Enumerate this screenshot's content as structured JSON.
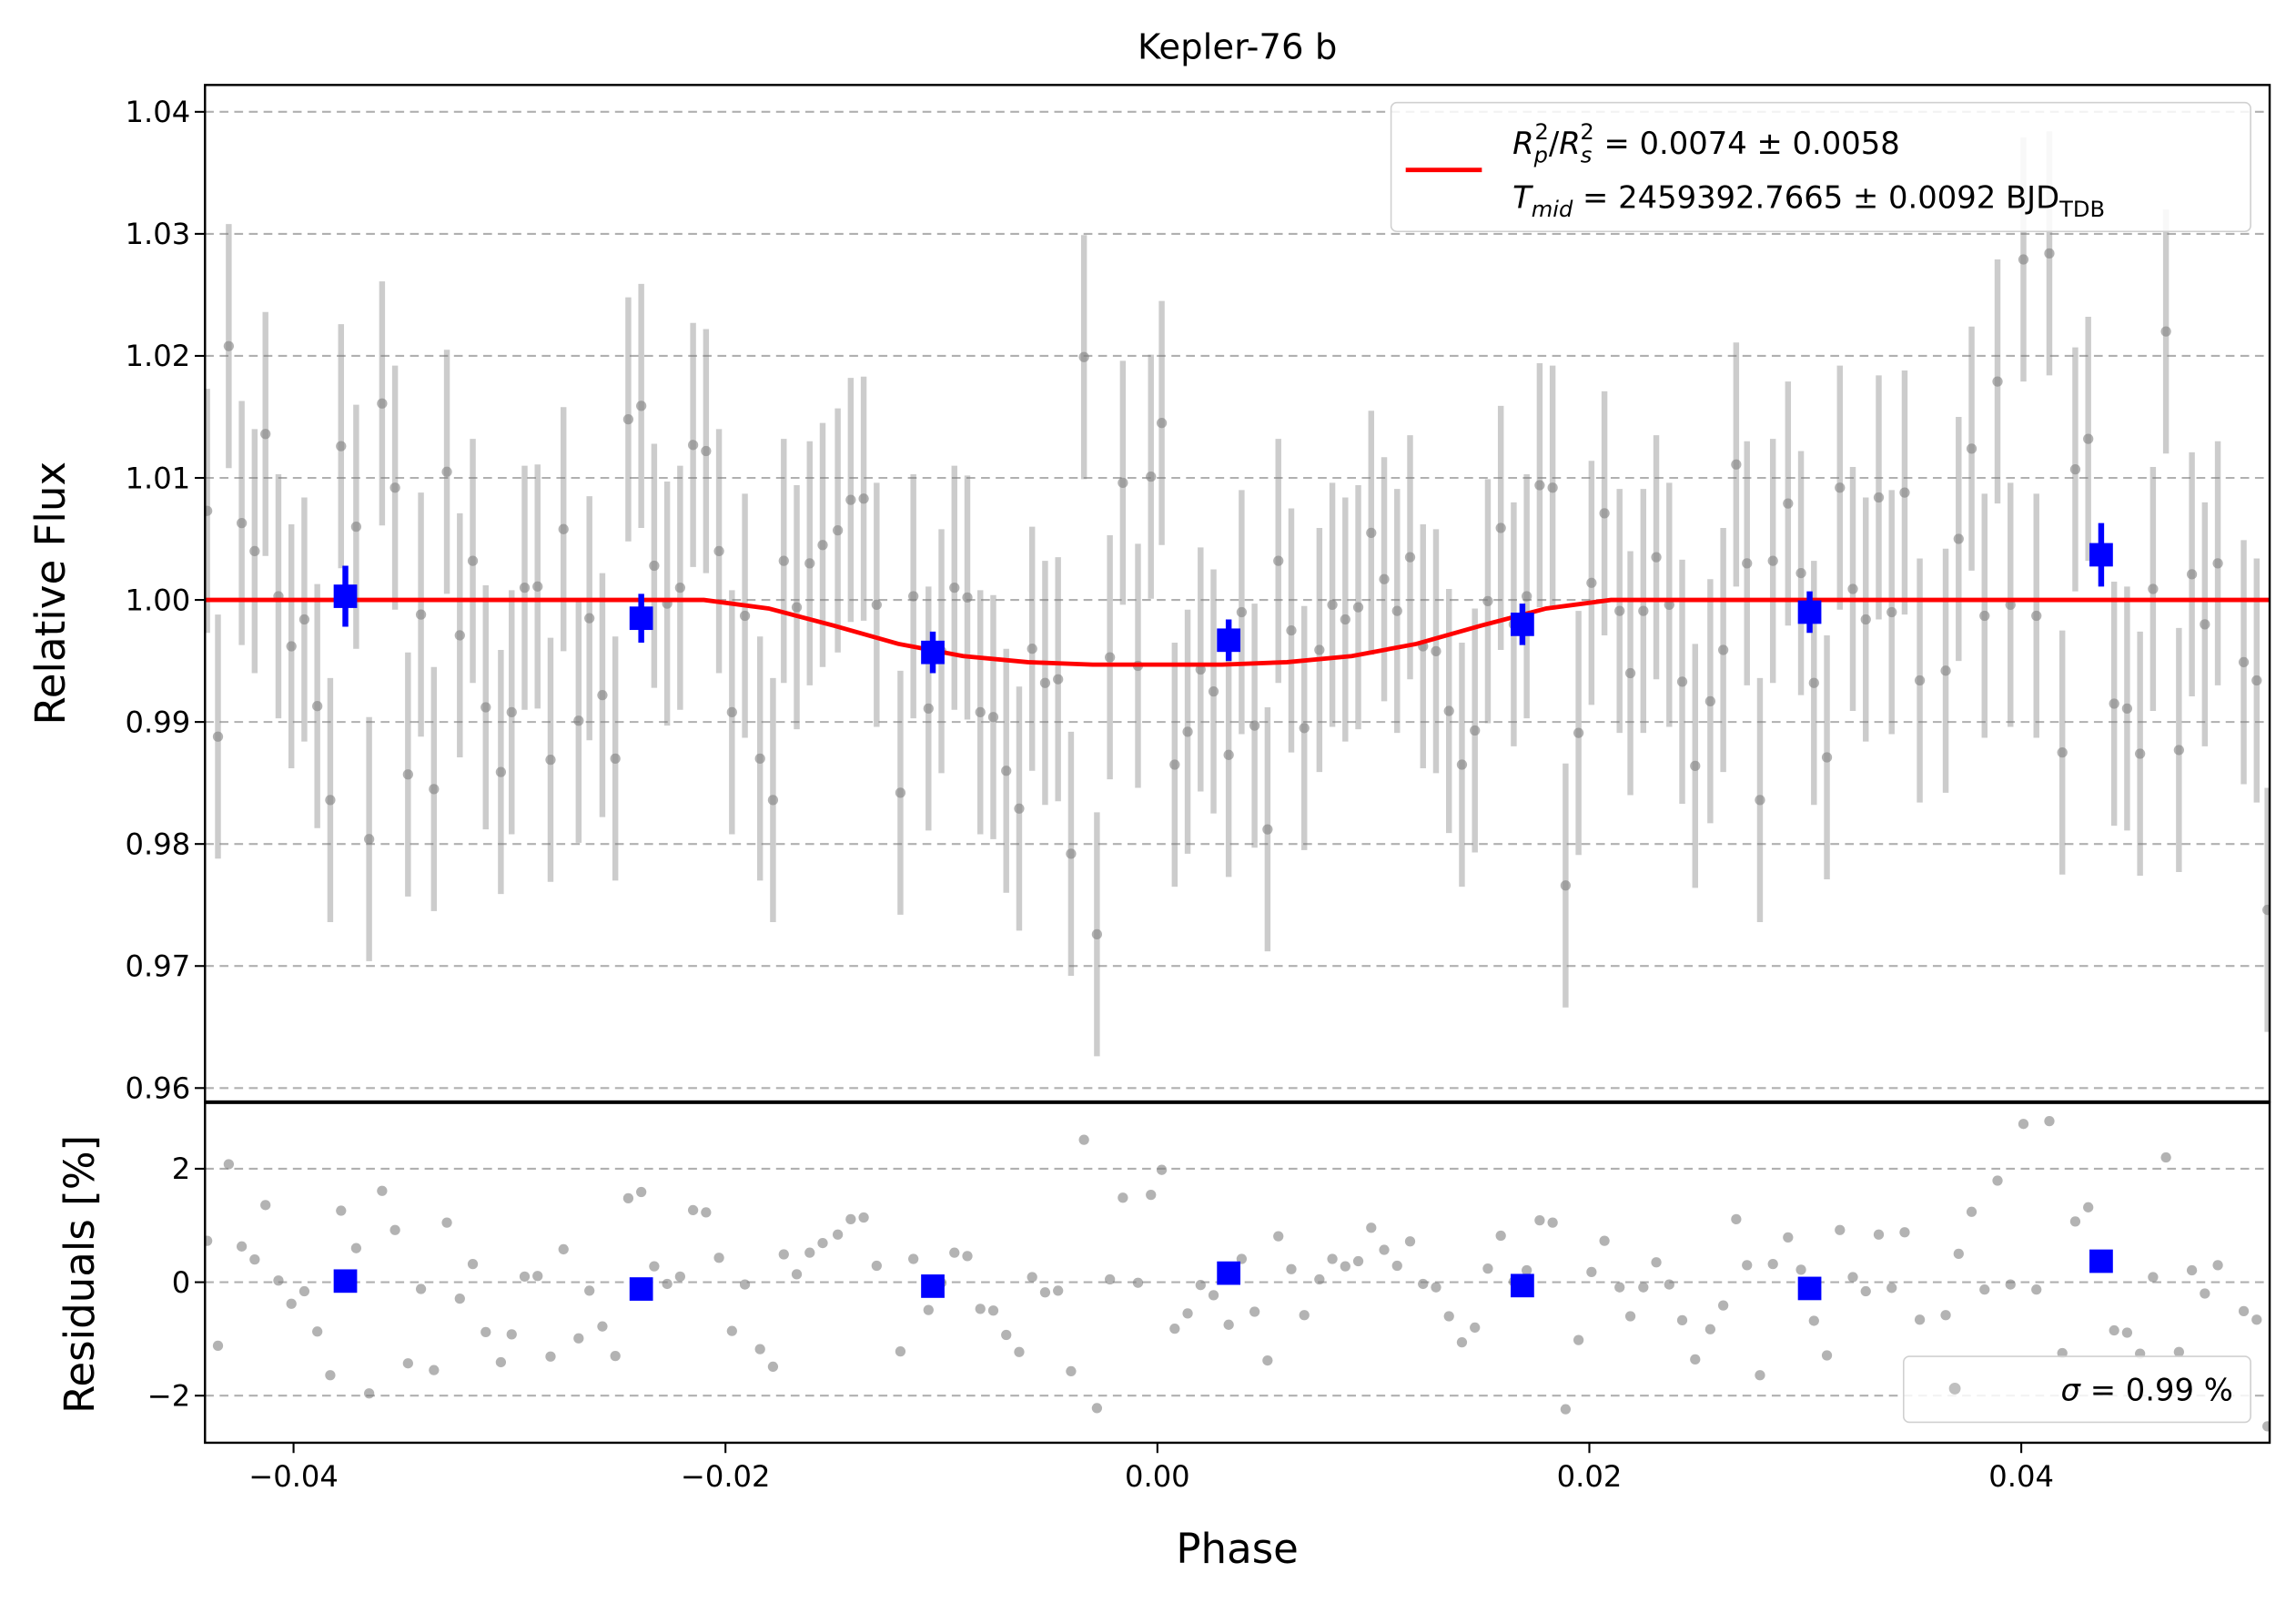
{
  "chart_data": [
    {
      "type": "scatter",
      "title": "Kepler-76 b",
      "ylabel": "Relative Flux",
      "xlim": [
        -0.0441,
        0.0515
      ],
      "ylim": [
        0.9589,
        1.0422
      ],
      "yticks": [
        0.96,
        0.97,
        0.98,
        0.99,
        {
          "value": 1.0,
          "label": "1.00"
        },
        1.01,
        1.02,
        1.03,
        1.04
      ],
      "grid": true,
      "legend": {
        "position": "upper right",
        "lines": [
          [
            "R",
            "p",
            "2",
            "/",
            "R",
            "s",
            "2",
            " = 0.0074 ± 0.0058"
          ],
          [
            "T",
            "mid",
            " = 2459392.7665 ± 0.0092 BJD",
            "TDB"
          ]
        ]
      },
      "series": [
        {
          "color": "#808080",
          "marker": "circle",
          "error": 0.01,
          "x": [
            -0.044,
            -0.0435,
            -0.043,
            -0.0424,
            -0.0418,
            -0.0413,
            -0.0407,
            -0.0401,
            -0.0395,
            -0.0389,
            -0.0383,
            -0.0378,
            -0.0371,
            -0.0365,
            -0.0359,
            -0.0353,
            -0.0347,
            -0.0341,
            -0.0335,
            -0.0329,
            -0.0323,
            -0.0317,
            -0.0311,
            -0.0304,
            -0.0299,
            -0.0293,
            -0.0287,
            -0.0281,
            -0.0275,
            -0.0268,
            -0.0263,
            -0.0257,
            -0.0251,
            -0.0245,
            -0.0239,
            -0.0233,
            -0.0227,
            -0.0221,
            -0.0215,
            -0.0209,
            -0.0203,
            -0.0197,
            -0.0191,
            -0.0184,
            -0.0178,
            -0.0173,
            -0.0167,
            -0.0161,
            -0.0155,
            -0.0148,
            -0.0142,
            -0.0136,
            -0.013,
            -0.0119,
            -0.0113,
            -0.0106,
            -0.01,
            -0.0094,
            -0.0088,
            -0.0082,
            -0.0076,
            -0.007,
            -0.0064,
            -0.0058,
            -0.0052,
            -0.0046,
            -0.004,
            -0.0034,
            -0.0028,
            -0.0022,
            -0.0016,
            -0.0009,
            -0.0003,
            0.0002,
            0.0008,
            0.0014,
            0.002,
            0.0026,
            0.0033,
            0.0039,
            0.0045,
            0.0051,
            0.0056,
            0.0062,
            0.0068,
            0.0075,
            0.0081,
            0.0087,
            0.0093,
            0.0099,
            0.0105,
            0.0111,
            0.0117,
            0.0123,
            0.0129,
            0.0135,
            0.0141,
            0.0147,
            0.0153,
            0.0159,
            0.0165,
            0.0171,
            0.0177,
            0.0183,
            0.0189,
            0.0195,
            0.0201,
            0.0207,
            0.0214,
            0.0219,
            0.0225,
            0.0231,
            0.0237,
            0.0243,
            0.0249,
            0.0256,
            0.0262,
            0.0268,
            0.0273,
            0.0279,
            0.0285,
            0.0292,
            0.0298,
            0.0304,
            0.031,
            0.0316,
            0.0322,
            0.0328,
            0.0334,
            0.034,
            0.0346,
            0.0353,
            0.0365,
            0.0371,
            0.0377,
            0.0383,
            0.0389,
            0.0395,
            0.0401,
            0.0407,
            0.0413,
            0.0419,
            0.0425,
            0.0431,
            0.0443,
            0.0449,
            0.0455,
            0.0461,
            0.0467,
            0.0473,
            0.0479,
            0.0485,
            0.0491,
            0.0503,
            0.0509,
            0.0514
          ],
          "values": [
            1.0073,
            0.9888,
            1.0208,
            1.0063,
            1.004,
            1.0136,
            1.0003,
            0.9962,
            0.9984,
            0.9913,
            0.9836,
            1.0126,
            1.006,
            0.9804,
            1.0161,
            1.0092,
            0.9857,
            0.9988,
            0.9845,
            1.0105,
            0.9971,
            1.0032,
            0.9912,
            0.9859,
            0.9908,
            1.001,
            1.0011,
            0.9869,
            1.0058,
            0.9901,
            0.9985,
            0.9922,
            0.987,
            1.0148,
            1.0159,
            1.0028,
            0.9997,
            1.001,
            1.0127,
            1.0122,
            1.004,
            0.9908,
            0.9987,
            0.987,
            0.9836,
            1.0032,
            0.9994,
            1.003,
            1.0045,
            1.0057,
            1.0082,
            1.0083,
            0.9996,
            0.9842,
            1.0003,
            0.9911,
            0.9958,
            1.001,
            1.0002,
            0.9908,
            0.9904,
            0.986,
            0.9829,
            0.996,
            0.9932,
            0.9935,
            0.9792,
            1.0199,
            0.9726,
            0.9953,
            1.0096,
            0.9946,
            1.0101,
            1.0145,
            0.9865,
            0.9892,
            0.9943,
            0.9925,
            0.9873,
            0.999,
            0.9897,
            0.9812,
            1.0032,
            0.9975,
            0.9895,
            0.9959,
            0.9996,
            0.9984,
            0.9994,
            1.0055,
            1.0017,
            0.9991,
            1.0035,
            0.9962,
            0.9958,
            0.9909,
            0.9865,
            0.9893,
            0.9999,
            1.0059,
            0.998,
            1.0003,
            1.0094,
            1.0092,
            0.9766,
            0.9891,
            1.0014,
            1.0071,
            0.9991,
            0.994,
            0.9991,
            1.0035,
            0.9996,
            0.9933,
            0.9864,
            0.9917,
            0.9959,
            1.0111,
            1.003,
            0.9836,
            1.0032,
            1.0079,
            1.0022,
            0.9932,
            0.9871,
            1.0092,
            1.0009,
            0.9984,
            1.0084,
            0.999,
            1.0088,
            0.9934,
            0.9942,
            1.005,
            1.0124,
            0.9987,
            1.0179,
            0.9996,
            1.0279,
            0.9987,
            1.0284,
            0.9875,
            1.0107,
            1.0132,
            0.9915,
            0.9911,
            0.9874,
            1.0009,
            1.022,
            0.9877,
            1.0021,
            0.998,
            1.003,
            0.9949,
            0.9934,
            0.9746
          ]
        },
        {
          "color": "#ff0000",
          "marker": "none",
          "x": [
            -0.0441,
            -0.021,
            -0.018,
            -0.015,
            -0.012,
            -0.009,
            -0.006,
            -0.003,
            0,
            0.003,
            0.006,
            0.009,
            0.012,
            0.015,
            0.018,
            0.021,
            0.0515
          ],
          "values": [
            1.0,
            1.0,
            0.9993,
            0.9979,
            0.9964,
            0.9954,
            0.9949,
            0.9947,
            0.9947,
            0.9947,
            0.9949,
            0.9954,
            0.9964,
            0.9979,
            0.9993,
            1.0,
            1.0
          ]
        },
        {
          "color": "#0000ff",
          "marker": "square",
          "x": [
            -0.0376,
            -0.0239,
            -0.0104,
            0.0033,
            0.0169,
            0.0302,
            0.0437
          ],
          "values": [
            1.0003,
            0.9985,
            0.9957,
            0.9967,
            0.998,
            0.999,
            1.0037
          ],
          "errors": [
            0.0025,
            0.002,
            0.0017,
            0.0017,
            0.0017,
            0.0017,
            0.0026
          ]
        }
      ]
    },
    {
      "type": "scatter",
      "xlabel": "Phase",
      "ylabel": "Residuals [%]",
      "xlim": [
        -0.0441,
        0.0515
      ],
      "ylim": [
        -2.83,
        3.16
      ],
      "xticks": [
        {
          "value": -0.04,
          "label": "−0.04"
        },
        {
          "value": -0.02,
          "label": "−0.02"
        },
        {
          "value": 0,
          "label": "0.00"
        },
        0.02,
        0.04
      ],
      "yticks": [
        {
          "value": -2,
          "label": "−2"
        },
        0,
        2
      ],
      "grid": true,
      "legend": {
        "position": "lower right",
        "parts": [
          "σ",
          " = 0.99 %"
        ]
      },
      "series": [
        {
          "color": "#808080",
          "marker": "circle",
          "x": [
            -0.044,
            -0.0435,
            -0.043,
            -0.0424,
            -0.0418,
            -0.0413,
            -0.0407,
            -0.0401,
            -0.0395,
            -0.0389,
            -0.0383,
            -0.0378,
            -0.0371,
            -0.0365,
            -0.0359,
            -0.0353,
            -0.0347,
            -0.0341,
            -0.0335,
            -0.0329,
            -0.0323,
            -0.0317,
            -0.0311,
            -0.0304,
            -0.0299,
            -0.0293,
            -0.0287,
            -0.0281,
            -0.0275,
            -0.0268,
            -0.0263,
            -0.0257,
            -0.0251,
            -0.0245,
            -0.0239,
            -0.0233,
            -0.0227,
            -0.0221,
            -0.0215,
            -0.0209,
            -0.0203,
            -0.0197,
            -0.0191,
            -0.0184,
            -0.0178,
            -0.0173,
            -0.0167,
            -0.0161,
            -0.0155,
            -0.0148,
            -0.0142,
            -0.0136,
            -0.013,
            -0.0119,
            -0.0113,
            -0.0106,
            -0.01,
            -0.0094,
            -0.0088,
            -0.0082,
            -0.0076,
            -0.007,
            -0.0064,
            -0.0058,
            -0.0052,
            -0.0046,
            -0.004,
            -0.0034,
            -0.0028,
            -0.0022,
            -0.0016,
            -0.0009,
            -0.0003,
            0.0002,
            0.0008,
            0.0014,
            0.002,
            0.0026,
            0.0033,
            0.0039,
            0.0045,
            0.0051,
            0.0056,
            0.0062,
            0.0068,
            0.0075,
            0.0081,
            0.0087,
            0.0093,
            0.0099,
            0.0105,
            0.0111,
            0.0117,
            0.0123,
            0.0129,
            0.0135,
            0.0141,
            0.0147,
            0.0153,
            0.0159,
            0.0165,
            0.0171,
            0.0177,
            0.0183,
            0.0189,
            0.0195,
            0.0201,
            0.0207,
            0.0214,
            0.0219,
            0.0225,
            0.0231,
            0.0237,
            0.0243,
            0.0249,
            0.0256,
            0.0262,
            0.0268,
            0.0273,
            0.0279,
            0.0285,
            0.0292,
            0.0298,
            0.0304,
            0.031,
            0.0316,
            0.0322,
            0.0328,
            0.0334,
            0.034,
            0.0346,
            0.0353,
            0.0365,
            0.0371,
            0.0377,
            0.0383,
            0.0389,
            0.0395,
            0.0401,
            0.0407,
            0.0413,
            0.0419,
            0.0425,
            0.0431,
            0.0443,
            0.0449,
            0.0455,
            0.0461,
            0.0467,
            0.0473,
            0.0479,
            0.0485,
            0.0491,
            0.0503,
            0.0509,
            0.0514
          ],
          "values": [
            0.73,
            -1.12,
            2.08,
            0.63,
            0.4,
            1.36,
            0.03,
            -0.38,
            -0.16,
            -0.87,
            -1.64,
            1.26,
            0.6,
            -1.96,
            1.61,
            0.92,
            -1.43,
            -0.12,
            -1.55,
            1.05,
            -0.29,
            0.32,
            -0.88,
            -1.41,
            -0.92,
            0.1,
            0.11,
            -1.31,
            0.58,
            -0.99,
            -0.15,
            -0.78,
            -1.3,
            1.48,
            1.59,
            0.28,
            -0.03,
            0.1,
            1.27,
            1.23,
            0.43,
            -0.86,
            -0.04,
            -1.18,
            -1.49,
            0.49,
            0.14,
            0.52,
            0.69,
            0.84,
            1.11,
            1.14,
            0.29,
            -1.22,
            0.41,
            -0.49,
            -0.01,
            0.52,
            0.46,
            -0.47,
            -0.5,
            -0.93,
            -1.23,
            0.09,
            -0.18,
            -0.15,
            -1.57,
            2.51,
            -2.22,
            0.05,
            1.49,
            -0.01,
            1.54,
            1.98,
            -0.82,
            -0.55,
            -0.05,
            -0.23,
            -0.75,
            0.41,
            -0.52,
            -1.38,
            0.81,
            0.23,
            -0.58,
            0.05,
            0.41,
            0.28,
            0.37,
            0.96,
            0.57,
            0.29,
            0.72,
            -0.03,
            -0.09,
            -0.6,
            -1.06,
            -0.8,
            0.24,
            0.82,
            0.01,
            0.21,
            1.09,
            1.05,
            -2.24,
            -1.02,
            0.18,
            0.73,
            -0.09,
            -0.6,
            -0.09,
            0.35,
            -0.04,
            -0.67,
            -1.36,
            -0.83,
            -0.41,
            1.11,
            0.3,
            -1.64,
            0.32,
            0.79,
            0.22,
            -0.68,
            -1.29,
            0.92,
            0.09,
            -0.16,
            0.84,
            -0.1,
            0.88,
            -0.66,
            -0.58,
            0.5,
            1.24,
            -0.13,
            1.79,
            -0.04,
            2.79,
            -0.13,
            2.84,
            -1.25,
            1.07,
            1.32,
            -0.85,
            -0.89,
            -1.26,
            0.09,
            2.2,
            -1.23,
            0.21,
            -0.2,
            0.3,
            -0.51,
            -0.66,
            -2.54
          ]
        },
        {
          "color": "#0000ff",
          "marker": "square",
          "x": [
            -0.0376,
            -0.0239,
            -0.0104,
            0.0033,
            0.0169,
            0.0302,
            0.0437
          ],
          "values": [
            0.02,
            -0.12,
            -0.07,
            0.16,
            -0.06,
            -0.11,
            0.37
          ]
        }
      ]
    }
  ]
}
